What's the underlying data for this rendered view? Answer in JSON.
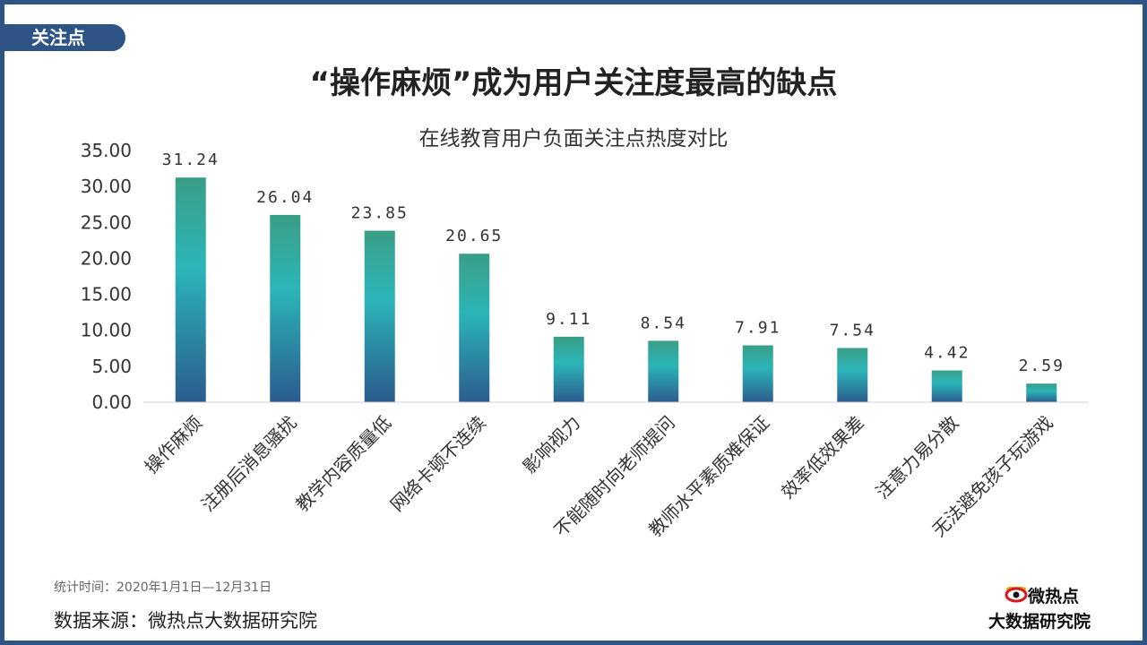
{
  "tag": "关注点",
  "title": "“操作麻烦”成为用户关注度最高的缺点",
  "chart_data": {
    "type": "bar",
    "title": "在线教育用户负面关注点热度对比",
    "categories": [
      "操作麻烦",
      "注册后消息骚扰",
      "教学内容质量低",
      "网络卡顿不连续",
      "影响视力",
      "不能随时向老师提问",
      "教师水平素质难保证",
      "效率低效果差",
      "注意力易分散",
      "无法避免孩子玩游戏"
    ],
    "values": [
      31.24,
      26.04,
      23.85,
      20.65,
      9.11,
      8.54,
      7.91,
      7.54,
      4.42,
      2.59
    ],
    "value_labels": [
      "31.24",
      "26.04",
      "23.85",
      "20.65",
      "9.11",
      "8.54",
      "7.91",
      "7.54",
      "4.42",
      "2.59"
    ],
    "ylim": [
      0,
      35
    ],
    "yticks": [
      "0.00",
      "5.00",
      "10.00",
      "15.00",
      "20.00",
      "25.00",
      "30.00",
      "35.00"
    ],
    "grid": false,
    "bar_gradient": [
      "#3a9e86",
      "#2bb5b8",
      "#2b5c8e"
    ]
  },
  "footer": {
    "period": "统计时间：2020年1月1日—12月31日",
    "source": "数据来源：微热点大数据研究院"
  },
  "logo": {
    "brand": "微热点",
    "institute": "大数据研究院"
  }
}
